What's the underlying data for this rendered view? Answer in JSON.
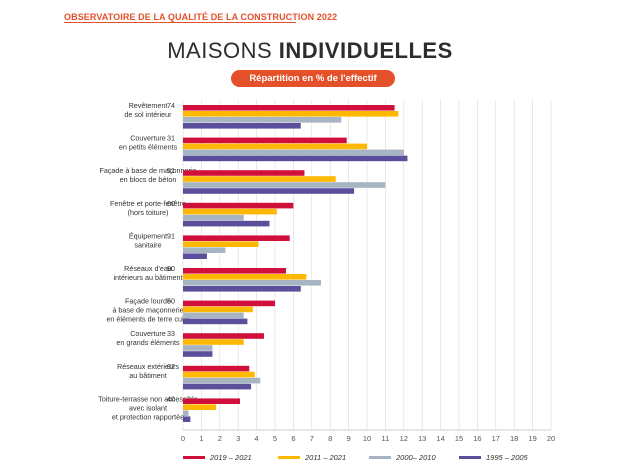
{
  "header": {
    "observatory": "OBSERVATOIRE DE LA QUALITÉ DE LA CONSTRUCTION 2022"
  },
  "title_part1": "MAISONS ",
  "title_part2": "INDIVIDUELLES",
  "subtitle": "Répartition en % de l'effectif",
  "colors": {
    "accent": "#e3502a",
    "series": [
      "#d0103a",
      "#ffb800",
      "#a7b4c2",
      "#5b4f9c"
    ]
  },
  "chart_data": {
    "type": "bar",
    "orientation": "horizontal",
    "categories": [
      {
        "lines": [
          "Revêtement",
          "de sol intérieur"
        ],
        "code": "74"
      },
      {
        "lines": [
          "Couverture",
          "en petits éléments"
        ],
        "code": "31"
      },
      {
        "lines": [
          "Façade à base de maçonnerie",
          "en blocs de béton"
        ],
        "code": "51"
      },
      {
        "lines": [
          "Fenêtre et porte-fenêtre",
          "(hors toiture)"
        ],
        "code": "60"
      },
      {
        "lines": [
          "Équipement",
          "sanitaire"
        ],
        "code": "91"
      },
      {
        "lines": [
          "Réseaux d'eau",
          "intérieurs au bâtiment"
        ],
        "code": "90"
      },
      {
        "lines": [
          "Façade lourde",
          "à base de maçonnerie",
          "en éléments de terre cuite"
        ],
        "code": "50"
      },
      {
        "lines": [
          "Couverture",
          "en grands éléments"
        ],
        "code": "33"
      },
      {
        "lines": [
          "Réseaux extérieurs",
          "au bâtiment"
        ],
        "code": "02"
      },
      {
        "lines": [
          "Toiture-terrasse non accessible",
          "avec isolant",
          "et protection rapportée"
        ],
        "code": "40"
      }
    ],
    "series": [
      {
        "name": "2019 – 2021",
        "values": [
          11.5,
          8.9,
          6.6,
          6.0,
          5.8,
          5.6,
          5.0,
          4.4,
          3.6,
          3.1
        ]
      },
      {
        "name": "2011 – 2021",
        "values": [
          11.7,
          10.0,
          8.3,
          5.1,
          4.1,
          6.7,
          3.8,
          3.3,
          3.9,
          1.8
        ]
      },
      {
        "name": "2000– 2010",
        "values": [
          8.6,
          12.0,
          11.0,
          3.3,
          2.3,
          7.5,
          3.3,
          1.6,
          4.2,
          0.3
        ]
      },
      {
        "name": "1995 – 2005",
        "values": [
          6.4,
          12.2,
          9.3,
          4.7,
          1.3,
          6.4,
          3.5,
          1.6,
          3.7,
          0.4
        ]
      }
    ],
    "xlim": [
      0,
      20
    ],
    "xticks": [
      "0",
      "1",
      "2",
      "3",
      "4",
      "5",
      "6",
      "7",
      "8",
      "9",
      "10",
      "11",
      "12",
      "13",
      "14",
      "15",
      "16",
      "17",
      "18",
      "19",
      "20"
    ],
    "grid": true,
    "legend_position": "bottom"
  }
}
